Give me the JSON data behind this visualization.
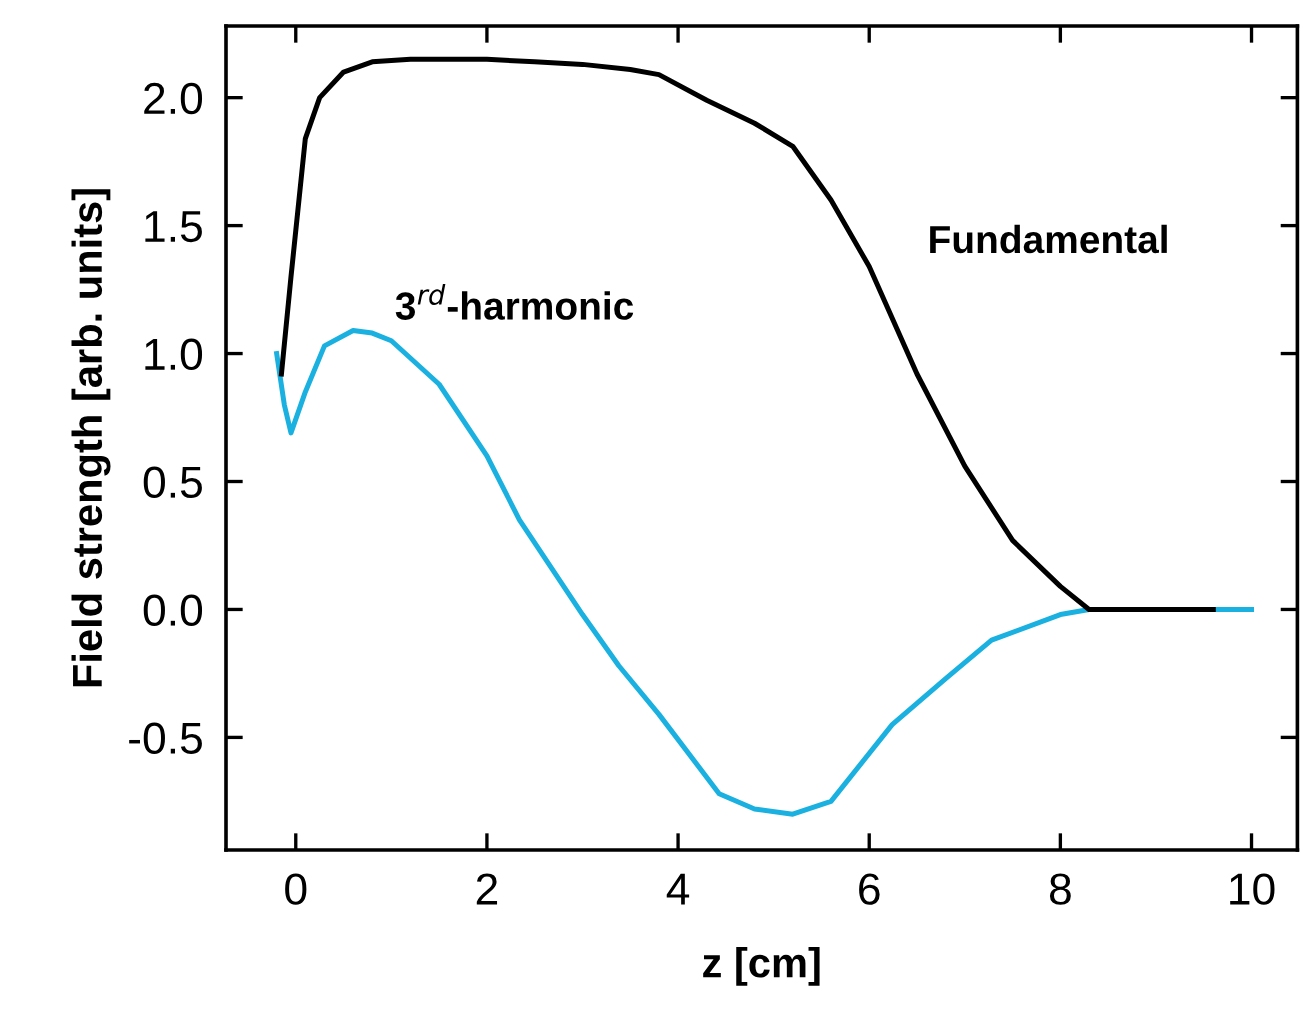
{
  "chart_data": {
    "type": "line",
    "xlabel": "z [cm]",
    "ylabel": "Field strength [arb. units]",
    "xlim": [
      -0.73,
      10.48
    ],
    "ylim": [
      -0.94,
      2.28
    ],
    "xticks": [
      0,
      2,
      4,
      6,
      8,
      10
    ],
    "yticks": [
      {
        "value": -0.5,
        "label": "-0.5"
      },
      {
        "value": 0,
        "label": "0.0"
      },
      {
        "value": 0.5,
        "label": "0.5"
      },
      {
        "value": 1,
        "label": "1.0"
      },
      {
        "value": 1.5,
        "label": "1.5"
      },
      {
        "value": 2,
        "label": "2.0"
      }
    ],
    "grid": false,
    "legend": false,
    "marker": "none",
    "line_style": "solid",
    "series": [
      {
        "name": "Fundamental",
        "color": "#000000",
        "x": [
          -0.15,
          -0.05,
          0.1,
          0.25,
          0.5,
          0.8,
          1.2,
          1.5,
          2.0,
          2.5,
          3.0,
          3.5,
          3.8,
          4.3,
          4.8,
          5.2,
          5.6,
          6.0,
          6.5,
          7.0,
          7.5,
          8.0,
          8.3,
          8.6,
          9.0,
          9.6
        ],
        "values": [
          0.92,
          1.3,
          1.84,
          2.0,
          2.1,
          2.14,
          2.15,
          2.15,
          2.15,
          2.14,
          2.13,
          2.11,
          2.09,
          1.99,
          1.9,
          1.81,
          1.6,
          1.34,
          0.92,
          0.56,
          0.27,
          0.09,
          0.0,
          0.0,
          0.0,
          0.0
        ]
      },
      {
        "name": "3$^{rd}$-harmonic",
        "color": "#1ab0e0",
        "x": [
          -0.2,
          -0.12,
          -0.05,
          0.1,
          0.3,
          0.6,
          0.8,
          1.0,
          1.5,
          2.0,
          2.34,
          3.0,
          3.38,
          3.8,
          4.43,
          4.8,
          5.2,
          5.6,
          6.24,
          6.8,
          7.28,
          8.0,
          8.3,
          9.0,
          10.0
        ],
        "values": [
          1.0,
          0.8,
          0.69,
          0.85,
          1.03,
          1.09,
          1.08,
          1.05,
          0.88,
          0.6,
          0.35,
          -0.02,
          -0.22,
          -0.41,
          -0.72,
          -0.78,
          -0.8,
          -0.75,
          -0.45,
          -0.27,
          -0.12,
          -0.02,
          0.0,
          0.0,
          0.0
        ]
      }
    ]
  }
}
